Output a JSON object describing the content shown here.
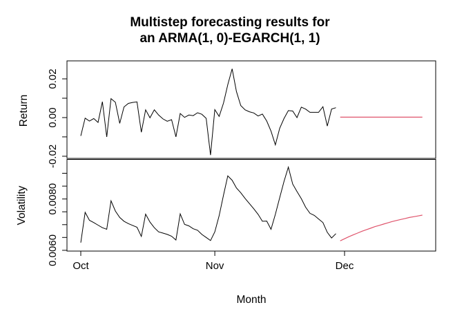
{
  "chart_data": {
    "type": "line",
    "title": "Multistep forecasting results for an ARMA(1, 0)-EGARCH(1, 1)",
    "title_lines": [
      "Multistep forecasting results for",
      "an ARMA(1, 0)-EGARCH(1, 1)"
    ],
    "xlabel": "Month",
    "x_axis": {
      "unit": "days (daily series, day 0 = Oct 1)",
      "ticks": [
        {
          "label": "Oct",
          "day": 0
        },
        {
          "label": "Nov",
          "day": 31
        },
        {
          "label": "Dec",
          "day": 61
        }
      ]
    },
    "colors": {
      "observed": "#000000",
      "forecast": "#DF536B"
    },
    "legend": "none",
    "grid": false,
    "panels": [
      {
        "id": "return",
        "ylabel": "Return",
        "ylim": [
          -0.0211,
          0.0293
        ],
        "yticks": [
          -0.02,
          -0.01,
          0,
          0.01,
          0.02
        ],
        "ytick_labels": [
          {
            "value": 0.02,
            "label": "0.02"
          },
          {
            "value": 0.0,
            "label": "0.00"
          },
          {
            "value": -0.02,
            "label": "-0.02"
          }
        ],
        "series": [
          {
            "id": "return-observed",
            "name": "observed return",
            "color": "#000000",
            "width": 1,
            "start_day": 0,
            "values": [
              -0.0095,
              -0.0003,
              -0.0018,
              -0.0005,
              -0.0025,
              0.0082,
              -0.01,
              0.0098,
              0.0079,
              -0.003,
              0.0055,
              0.0073,
              0.0078,
              0.0081,
              -0.0076,
              0.004,
              -0.0001,
              0.004,
              0.0013,
              -0.0007,
              -0.0019,
              -0.0011,
              -0.01,
              0.0021,
              0.0001,
              0.0013,
              0.001,
              0.0025,
              0.0017,
              -0.0004,
              -0.0194,
              0.0041,
              0.0006,
              0.0075,
              0.017,
              0.0252,
              0.0135,
              0.0062,
              0.004,
              0.003,
              0.0024,
              0.0008,
              0.0018,
              -0.0018,
              -0.007,
              -0.0141,
              -0.0055,
              -0.0005,
              0.0036,
              0.0034,
              0.0,
              0.0054,
              0.0044,
              0.0027,
              0.0027,
              0.0027,
              0.0056,
              -0.0044,
              0.0044,
              0.0051
            ]
          },
          {
            "id": "return-forecast",
            "name": "forecast return",
            "color": "#DF536B",
            "width": 1.2,
            "start_day": 60,
            "values": [
              0.0002,
              0.0002,
              0.0002,
              0.0002,
              0.0002,
              0.0002,
              0.0002,
              0.0002,
              0.0002,
              0.0002,
              0.0002,
              0.0002,
              0.0002,
              0.0002,
              0.0002,
              0.0002,
              0.0002,
              0.0002,
              0.0002,
              0.0002
            ]
          }
        ]
      },
      {
        "id": "volatility",
        "ylabel": "Volatility",
        "ylim": [
          0.00597,
          0.00954
        ],
        "yticks": [
          0.006,
          0.0065,
          0.007,
          0.0075,
          0.008,
          0.0085,
          0.009
        ],
        "ytick_labels": [
          {
            "value": 0.008,
            "label": "0.0080"
          },
          {
            "value": 0.006,
            "label": "0.0060"
          }
        ],
        "series": [
          {
            "id": "volatility-observed",
            "name": "observed volatility",
            "color": "#000000",
            "width": 1,
            "start_day": 0,
            "values": [
              0.0063,
              0.00748,
              0.00717,
              0.00708,
              0.00698,
              0.00688,
              0.00682,
              0.00793,
              0.00753,
              0.00728,
              0.00713,
              0.00704,
              0.00697,
              0.0069,
              0.00654,
              0.00741,
              0.0071,
              0.00688,
              0.00672,
              0.00667,
              0.00662,
              0.00655,
              0.0064,
              0.00742,
              0.00701,
              0.00695,
              0.00684,
              0.00678,
              0.00662,
              0.0065,
              0.00638,
              0.00672,
              0.00735,
              0.00815,
              0.0089,
              0.00873,
              0.00843,
              0.00824,
              0.00802,
              0.00782,
              0.00762,
              0.0074,
              0.00713,
              0.00714,
              0.00682,
              0.0074,
              0.00805,
              0.00868,
              0.00924,
              0.00858,
              0.00829,
              0.00801,
              0.00768,
              0.00744,
              0.00736,
              0.00722,
              0.00708,
              0.0067,
              0.00648,
              0.00665
            ]
          },
          {
            "id": "volatility-forecast",
            "name": "forecast volatility",
            "color": "#DF536B",
            "width": 1.2,
            "start_day": 60,
            "values": [
              0.00637,
              0.00645,
              0.00653,
              0.0066,
              0.00667,
              0.00674,
              0.0068,
              0.00686,
              0.00692,
              0.00697,
              0.00702,
              0.00707,
              0.00712,
              0.00716,
              0.0072,
              0.00724,
              0.00728,
              0.00731,
              0.00734,
              0.00737
            ]
          }
        ]
      }
    ]
  }
}
